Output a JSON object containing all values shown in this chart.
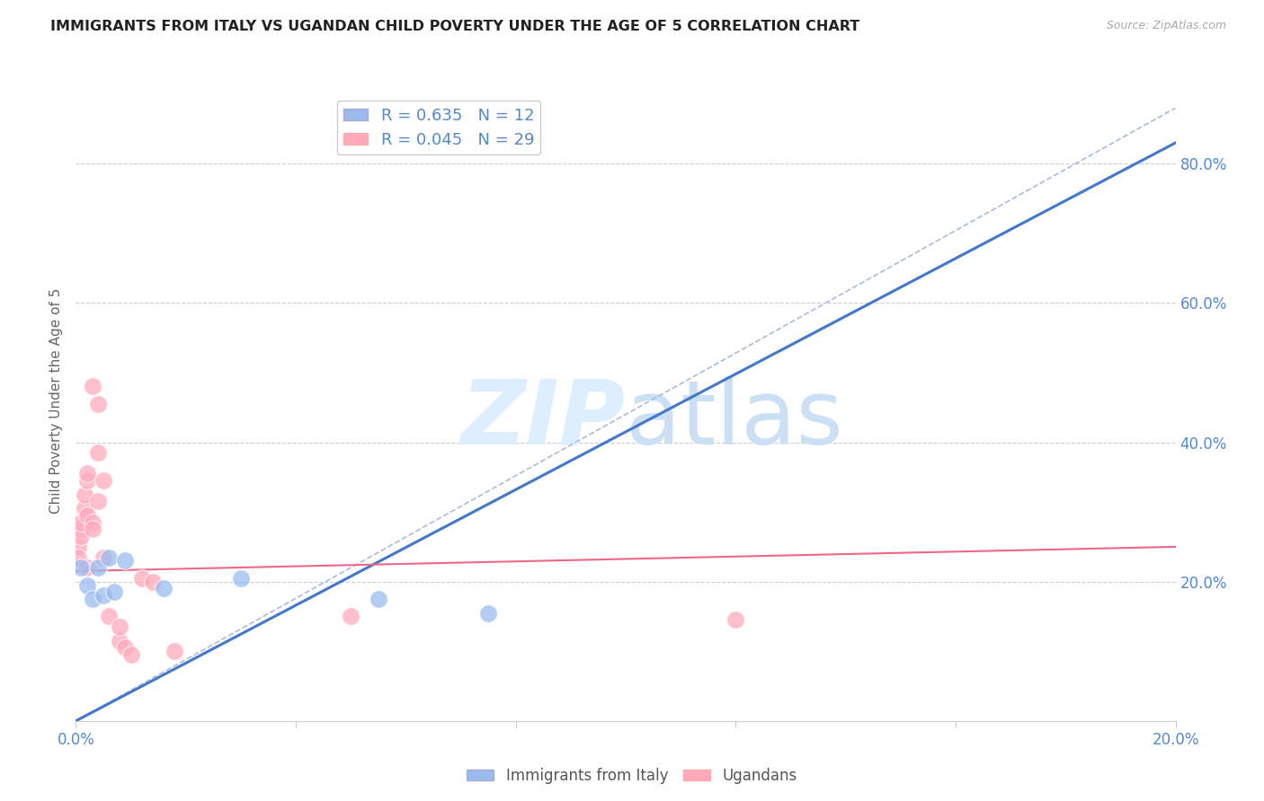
{
  "title": "IMMIGRANTS FROM ITALY VS UGANDAN CHILD POVERTY UNDER THE AGE OF 5 CORRELATION CHART",
  "source": "Source: ZipAtlas.com",
  "ylabel": "Child Poverty Under the Age of 5",
  "legend_label_blue": "Immigrants from Italy",
  "legend_label_pink": "Ugandans",
  "R_blue": 0.635,
  "N_blue": 12,
  "R_pink": 0.045,
  "N_pink": 29,
  "blue_scatter_x": [
    0.001,
    0.002,
    0.003,
    0.004,
    0.005,
    0.006,
    0.007,
    0.009,
    0.016,
    0.03,
    0.055,
    0.075
  ],
  "blue_scatter_y": [
    0.22,
    0.195,
    0.175,
    0.22,
    0.18,
    0.235,
    0.185,
    0.23,
    0.19,
    0.205,
    0.175,
    0.155
  ],
  "pink_scatter_x": [
    0.0005,
    0.0005,
    0.001,
    0.001,
    0.001,
    0.0015,
    0.0015,
    0.002,
    0.002,
    0.002,
    0.002,
    0.003,
    0.003,
    0.003,
    0.004,
    0.004,
    0.004,
    0.005,
    0.005,
    0.006,
    0.008,
    0.008,
    0.009,
    0.01,
    0.012,
    0.014,
    0.018,
    0.05,
    0.12
  ],
  "pink_scatter_y": [
    0.25,
    0.235,
    0.275,
    0.265,
    0.285,
    0.305,
    0.325,
    0.295,
    0.22,
    0.345,
    0.355,
    0.285,
    0.48,
    0.275,
    0.315,
    0.455,
    0.385,
    0.345,
    0.235,
    0.15,
    0.115,
    0.135,
    0.105,
    0.095,
    0.205,
    0.2,
    0.1,
    0.15,
    0.145
  ],
  "blue_line_x": [
    0.0,
    0.2
  ],
  "blue_line_y": [
    0.0,
    0.83
  ],
  "pink_line_x": [
    0.0,
    0.2
  ],
  "pink_line_y": [
    0.215,
    0.25
  ],
  "diag_line_x": [
    0.0,
    0.2
  ],
  "diag_line_y": [
    0.0,
    0.88
  ],
  "xlim": [
    0.0,
    0.2
  ],
  "ylim": [
    0.0,
    0.92
  ],
  "x_ticks": [
    0.0,
    0.04,
    0.08,
    0.12,
    0.16,
    0.2
  ],
  "y_ticks_right": [
    0.2,
    0.4,
    0.6,
    0.8
  ],
  "background_color": "#ffffff",
  "blue_color": "#99bbee",
  "pink_color": "#ffaabb",
  "trend_blue_color": "#4477cc",
  "trend_pink_color": "#ee6688",
  "diag_color": "#aabbdd",
  "grid_color": "#cccccc",
  "title_color": "#222222",
  "source_color": "#aaaaaa",
  "axis_label_color": "#5588cc",
  "watermark_color": "#ddeeff",
  "marker_size": 200,
  "marker_alpha": 0.75
}
